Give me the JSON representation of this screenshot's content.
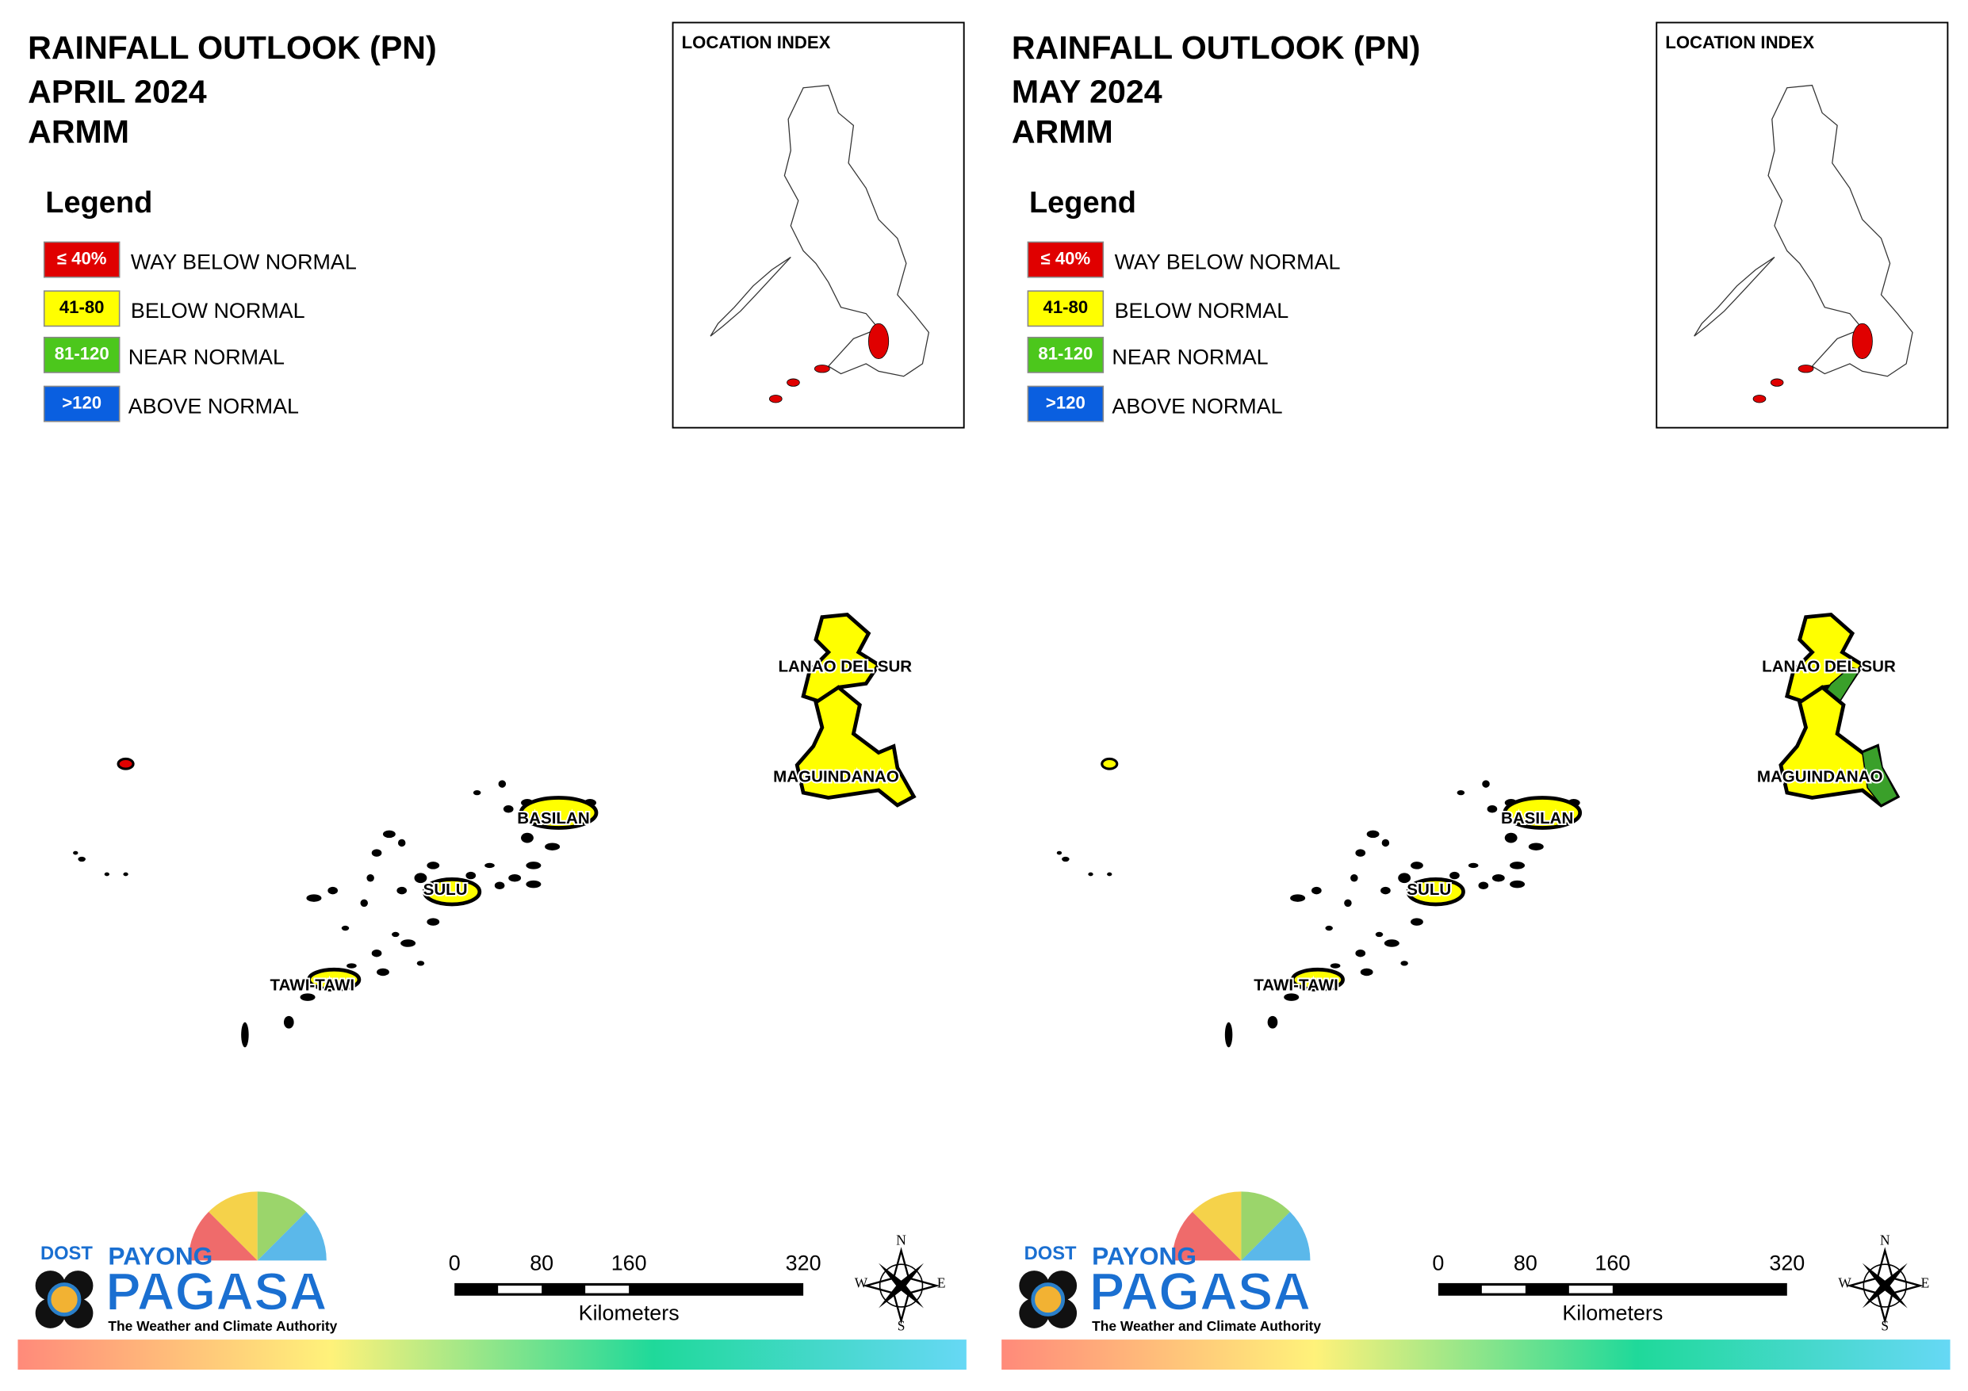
{
  "panels": [
    {
      "title_lines": [
        "RAINFALL OUTLOOK (PN)",
        "APRIL 2024",
        "ARMM"
      ],
      "legend": {
        "title": "Legend",
        "items": [
          {
            "box": "≤ 40%",
            "label": "WAY BELOW NORMAL",
            "color": "#e00000"
          },
          {
            "box": "41-80",
            "label": "BELOW NORMAL",
            "color": "#ffff00"
          },
          {
            "box": "81-120",
            "label": "NEAR NORMAL",
            "color": "#4cc71c"
          },
          {
            "box": ">120",
            "label": "ABOVE NORMAL",
            "color": "#0a5fe0"
          }
        ]
      },
      "location_index": "LOCATION INDEX",
      "regions": [
        {
          "name": "LANAO DEL SUR",
          "colors": [
            "#ffff00"
          ]
        },
        {
          "name": "MAGUINDANAO",
          "colors": [
            "#ffff00"
          ]
        },
        {
          "name": "BASILAN",
          "colors": [
            "#ffff00"
          ]
        },
        {
          "name": "SULU",
          "colors": [
            "#ffff00"
          ]
        },
        {
          "name": "TAWI-TAWI",
          "colors": [
            "#ffff00"
          ]
        }
      ],
      "scale": {
        "ticks": [
          0,
          80,
          160,
          320
        ],
        "unit": "Kilometers"
      },
      "compass": [
        "N",
        "S",
        "W",
        "E"
      ],
      "logo": {
        "agency": "DOST",
        "brand_top": "PAYONG",
        "brand": "PAGASA",
        "tagline": "The Weather and Climate Authority"
      }
    },
    {
      "title_lines": [
        "RAINFALL OUTLOOK (PN)",
        "MAY 2024",
        "ARMM"
      ],
      "legend": {
        "title": "Legend",
        "items": [
          {
            "box": "≤ 40%",
            "label": "WAY BELOW NORMAL",
            "color": "#e00000"
          },
          {
            "box": "41-80",
            "label": "BELOW NORMAL",
            "color": "#ffff00"
          },
          {
            "box": "81-120",
            "label": "NEAR NORMAL",
            "color": "#4cc71c"
          },
          {
            "box": ">120",
            "label": "ABOVE NORMAL",
            "color": "#0a5fe0"
          }
        ]
      },
      "location_index": "LOCATION INDEX",
      "regions": [
        {
          "name": "LANAO DEL SUR",
          "colors": [
            "#ffff00",
            "#3aa02a"
          ]
        },
        {
          "name": "MAGUINDANAO",
          "colors": [
            "#ffff00",
            "#3aa02a"
          ]
        },
        {
          "name": "BASILAN",
          "colors": [
            "#ffff00"
          ]
        },
        {
          "name": "SULU",
          "colors": [
            "#ffff00"
          ]
        },
        {
          "name": "TAWI-TAWI",
          "colors": [
            "#ffff00"
          ]
        }
      ],
      "scale": {
        "ticks": [
          0,
          80,
          160,
          320
        ],
        "unit": "Kilometers"
      },
      "compass": [
        "N",
        "S",
        "W",
        "E"
      ],
      "logo": {
        "agency": "DOST",
        "brand_top": "PAYONG",
        "brand": "PAGASA",
        "tagline": "The Weather and Climate Authority"
      }
    }
  ]
}
